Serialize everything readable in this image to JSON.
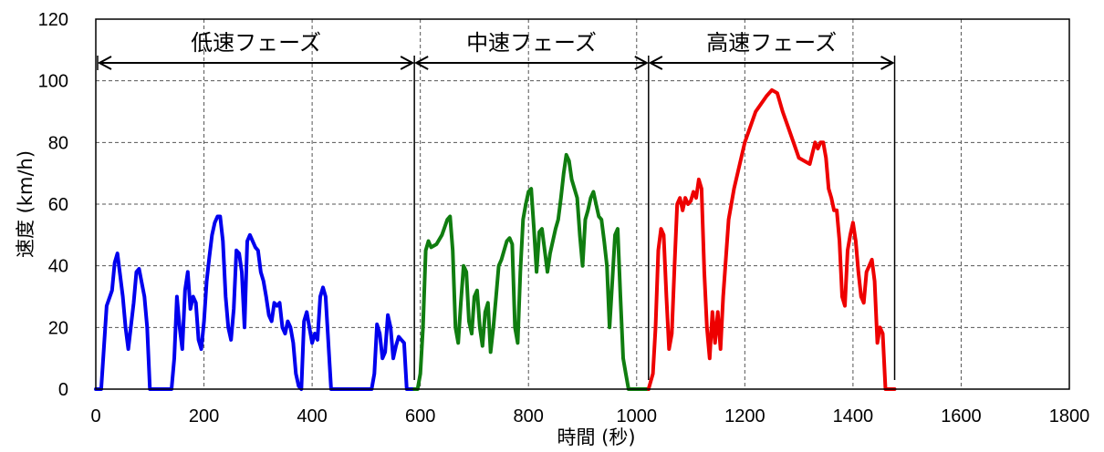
{
  "chart_data": {
    "type": "line",
    "title": "",
    "xlabel": "時間 (秒)",
    "ylabel": "速度 (km/h)",
    "xlim": [
      0,
      1800
    ],
    "ylim": [
      0,
      120
    ],
    "xticks": [
      0,
      200,
      400,
      600,
      800,
      1000,
      1200,
      1400,
      1600,
      1800
    ],
    "yticks": [
      0,
      20,
      40,
      60,
      80,
      100,
      120
    ],
    "grid": true,
    "phases": [
      {
        "label": "低速フェーズ",
        "start": 0,
        "end": 589
      },
      {
        "label": "中速フェーズ",
        "start": 589,
        "end": 1022
      },
      {
        "label": "高速フェーズ",
        "start": 1022,
        "end": 1477
      }
    ],
    "phase_boundaries": [
      589,
      1022,
      1477
    ],
    "series": [
      {
        "color": "#0000ee",
        "x": [
          0,
          10,
          20,
          30,
          35,
          40,
          50,
          55,
          60,
          70,
          75,
          80,
          90,
          95,
          100,
          110,
          120,
          140,
          145,
          150,
          155,
          160,
          165,
          170,
          175,
          180,
          185,
          190,
          195,
          200,
          205,
          210,
          215,
          220,
          225,
          230,
          235,
          240,
          245,
          250,
          255,
          260,
          265,
          270,
          275,
          280,
          285,
          290,
          295,
          300,
          305,
          310,
          315,
          320,
          325,
          330,
          335,
          340,
          345,
          350,
          355,
          360,
          365,
          370,
          375,
          380,
          385,
          390,
          395,
          400,
          405,
          410,
          415,
          420,
          425,
          430,
          435,
          440,
          445,
          450,
          460,
          470,
          480,
          490,
          500,
          510,
          515,
          520,
          525,
          530,
          535,
          540,
          545,
          550,
          555,
          560,
          565,
          570,
          575,
          580,
          589
        ],
        "y": [
          0,
          0,
          27,
          32,
          41,
          44,
          30,
          20,
          13,
          28,
          38,
          39,
          30,
          20,
          0,
          0,
          0,
          0,
          10,
          30,
          20,
          13,
          32,
          38,
          26,
          30,
          28,
          16,
          13,
          22,
          35,
          43,
          50,
          54,
          56,
          56,
          48,
          30,
          20,
          16,
          26,
          45,
          44,
          38,
          20,
          48,
          50,
          48,
          46,
          45,
          38,
          35,
          30,
          24,
          22,
          28,
          27,
          28,
          20,
          18,
          22,
          20,
          15,
          5,
          1,
          0,
          22,
          25,
          20,
          15,
          18,
          16,
          30,
          33,
          30,
          15,
          0,
          0,
          0,
          0,
          0,
          0,
          0,
          0,
          0,
          0,
          5,
          21,
          18,
          10,
          12,
          24,
          20,
          10,
          14,
          17,
          16,
          15,
          0,
          0,
          0
        ]
      },
      {
        "color": "#107d10",
        "x": [
          589,
          595,
          600,
          605,
          610,
          615,
          620,
          630,
          640,
          650,
          655,
          660,
          665,
          670,
          675,
          680,
          685,
          690,
          695,
          700,
          705,
          710,
          715,
          720,
          725,
          730,
          735,
          740,
          745,
          750,
          755,
          760,
          765,
          770,
          775,
          780,
          785,
          790,
          795,
          800,
          805,
          810,
          815,
          820,
          825,
          830,
          835,
          840,
          845,
          850,
          855,
          860,
          865,
          870,
          875,
          880,
          885,
          890,
          895,
          900,
          905,
          910,
          915,
          920,
          925,
          930,
          935,
          940,
          945,
          950,
          955,
          960,
          965,
          970,
          975,
          980,
          985,
          990,
          995,
          1000,
          1005,
          1010,
          1022
        ],
        "y": [
          0,
          0,
          5,
          20,
          45,
          48,
          46,
          47,
          50,
          55,
          56,
          45,
          20,
          15,
          28,
          40,
          38,
          22,
          18,
          30,
          32,
          20,
          14,
          25,
          28,
          12,
          20,
          30,
          40,
          42,
          45,
          48,
          49,
          47,
          20,
          15,
          38,
          55,
          60,
          64,
          65,
          52,
          38,
          51,
          52,
          45,
          38,
          44,
          48,
          52,
          55,
          62,
          70,
          76,
          74,
          68,
          65,
          62,
          50,
          40,
          55,
          58,
          62,
          64,
          60,
          56,
          55,
          48,
          40,
          20,
          35,
          50,
          52,
          30,
          10,
          5,
          0,
          0,
          0,
          0,
          0,
          0,
          0
        ]
      },
      {
        "color": "#ee0000",
        "x": [
          1022,
          1030,
          1035,
          1040,
          1045,
          1050,
          1055,
          1060,
          1065,
          1070,
          1075,
          1080,
          1085,
          1090,
          1095,
          1100,
          1105,
          1110,
          1115,
          1120,
          1125,
          1130,
          1135,
          1140,
          1145,
          1150,
          1155,
          1160,
          1170,
          1180,
          1200,
          1220,
          1240,
          1250,
          1260,
          1270,
          1280,
          1290,
          1300,
          1310,
          1320,
          1330,
          1335,
          1340,
          1345,
          1350,
          1355,
          1360,
          1365,
          1370,
          1375,
          1380,
          1385,
          1390,
          1395,
          1400,
          1405,
          1410,
          1415,
          1420,
          1425,
          1430,
          1435,
          1440,
          1445,
          1450,
          1455,
          1460,
          1465,
          1470,
          1477
        ],
        "y": [
          0,
          5,
          20,
          45,
          52,
          50,
          30,
          13,
          18,
          40,
          60,
          62,
          58,
          62,
          60,
          61,
          64,
          62,
          68,
          65,
          38,
          20,
          10,
          25,
          15,
          25,
          13,
          30,
          55,
          65,
          80,
          90,
          95,
          97,
          96,
          90,
          85,
          80,
          75,
          74,
          73,
          80,
          78,
          80,
          80,
          75,
          65,
          62,
          58,
          58,
          48,
          30,
          27,
          45,
          50,
          54,
          48,
          38,
          30,
          28,
          38,
          40,
          42,
          35,
          15,
          20,
          18,
          0,
          0,
          0,
          0
        ]
      }
    ]
  }
}
